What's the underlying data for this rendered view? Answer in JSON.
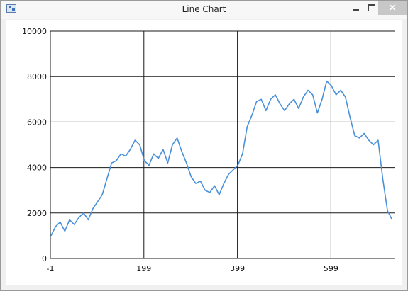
{
  "window": {
    "title": "Line Chart",
    "close_glyph": "✕",
    "icon": "app-icon"
  },
  "chart_data": {
    "type": "line",
    "title": "",
    "xlabel": "",
    "ylabel": "",
    "xlim": [
      -1,
      735
    ],
    "ylim": [
      0,
      10000
    ],
    "x_ticks": [
      -1,
      199,
      399,
      599
    ],
    "y_ticks": [
      0,
      2000,
      4000,
      6000,
      8000,
      10000
    ],
    "x_tick_labels": [
      "-1",
      "199",
      "399",
      "599"
    ],
    "y_tick_labels": [
      "0",
      "2000",
      "4000",
      "6000",
      "8000",
      "10000"
    ],
    "grid": true,
    "line_color": "#4a90d9",
    "series": [
      {
        "x": [
          0,
          10,
          20,
          30,
          40,
          50,
          60,
          70,
          80,
          90,
          100,
          110,
          120,
          130,
          140,
          150,
          160,
          170,
          180,
          190,
          200,
          210,
          220,
          230,
          240,
          250,
          260,
          270,
          280,
          290,
          300,
          310,
          320,
          330,
          340,
          350,
          360,
          370,
          380,
          390,
          400,
          410,
          420,
          430,
          440,
          450,
          460,
          470,
          480,
          490,
          500,
          510,
          520,
          530,
          540,
          550,
          560,
          570,
          580,
          590,
          600,
          610,
          620,
          630,
          640,
          650,
          660,
          670,
          680,
          690,
          700,
          710,
          720,
          730
        ],
        "values": [
          985,
          1400,
          1600,
          1200,
          1700,
          1500,
          1800,
          2000,
          1700,
          2200,
          2500,
          2800,
          3500,
          4200,
          4300,
          4600,
          4500,
          4800,
          5200,
          5000,
          4300,
          4100,
          4600,
          4400,
          4800,
          4200,
          5000,
          5300,
          4700,
          4200,
          3600,
          3300,
          3400,
          3000,
          2900,
          3200,
          2800,
          3300,
          3700,
          3900,
          4100,
          4600,
          5800,
          6300,
          6900,
          7000,
          6500,
          7000,
          7200,
          6800,
          6500,
          6800,
          7000,
          6600,
          7100,
          7400,
          7200,
          6400,
          7000,
          7800,
          7600,
          7200,
          7400,
          7100,
          6200,
          5400,
          5300,
          5500,
          5200,
          5000,
          5200,
          3500,
          2100,
          1700
        ]
      }
    ]
  }
}
